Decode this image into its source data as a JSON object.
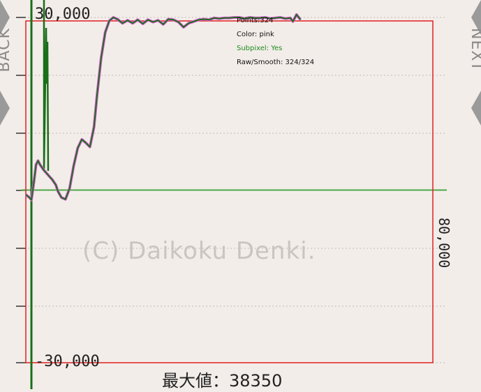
{
  "navigation": {
    "back_label": "BACK",
    "next_label": "NEXT"
  },
  "watermark": "(C) Daikoku Denki.",
  "max_label": "最大値：38350",
  "overlay": {
    "points": "Points:324",
    "color": "Color: pink",
    "subpixel": "Subpixel: Yes",
    "raw_smooth": "Raw/Smooth: 324/324"
  },
  "colors": {
    "background": "#f3ede9",
    "raw_line": "#e060d8",
    "smooth_line": "#1a6e1a",
    "zero_line": "#4ca84c",
    "crop_box": "#e02020"
  },
  "chart_data": {
    "type": "line",
    "title": "",
    "y_tick_labels": [
      "30,000",
      "-30,000"
    ],
    "x_axis_label": "80,000",
    "ylim": [
      -30000,
      30000
    ],
    "xlim": [
      0,
      80000
    ],
    "grid": true,
    "series": [
      {
        "values_x": [
          0,
          700,
          1100,
          1600,
          2000,
          2400,
          2800,
          3600,
          4400,
          5200,
          5900,
          6300,
          7000,
          7800,
          8600,
          9400,
          10200,
          11000,
          11800,
          12600,
          13400,
          14000,
          14800,
          15600,
          16400,
          17200,
          18000,
          19000,
          20000,
          21000,
          22000,
          23000,
          24000,
          25000,
          26000,
          27000,
          28000,
          29000,
          30000,
          31000,
          32000,
          33000,
          34000,
          35000,
          36000,
          37000,
          38000,
          39000,
          40000,
          41000,
          42000,
          43000,
          44000,
          45000,
          46000,
          47000,
          48000,
          49000,
          50000,
          51000,
          52000,
          52500,
          53200,
          54000
        ],
        "values_y": [
          -800,
          -1300,
          -1700,
          1500,
          4400,
          5100,
          4400,
          3400,
          2600,
          1800,
          900,
          -200,
          -1300,
          -1600,
          300,
          4200,
          7300,
          8800,
          8200,
          7500,
          11000,
          16500,
          23000,
          27400,
          29400,
          30000,
          29700,
          29000,
          29500,
          29000,
          29600,
          28900,
          29600,
          29200,
          29500,
          28800,
          29700,
          29600,
          29200,
          28300,
          29000,
          29300,
          29600,
          29700,
          29600,
          29900,
          29800,
          29900,
          29900,
          30000,
          30000,
          29800,
          30000,
          29900,
          29900,
          30000,
          29800,
          29900,
          30000,
          29800,
          29900,
          29300,
          30500,
          29600
        ]
      }
    ]
  }
}
